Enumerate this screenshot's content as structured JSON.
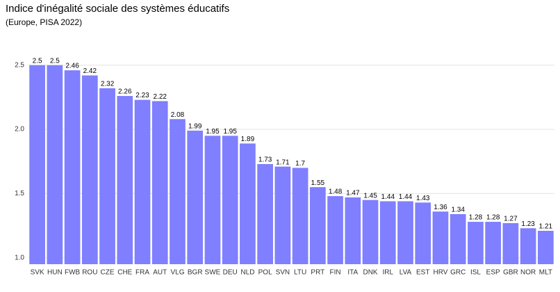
{
  "chart_data": {
    "type": "bar",
    "title": "Indice d'inégalité sociale des systèmes éducatifs",
    "subtitle": "(Europe, PISA 2022)",
    "categories": [
      "SVK",
      "HUN",
      "FWB",
      "ROU",
      "CZE",
      "CHE",
      "FRA",
      "AUT",
      "VLG",
      "BGR",
      "SWE",
      "DEU",
      "NLD",
      "POL",
      "SVN",
      "LTU",
      "PRT",
      "FIN",
      "ITA",
      "DNK",
      "IRL",
      "LVA",
      "EST",
      "HRV",
      "GRC",
      "ISL",
      "ESP",
      "GBR",
      "NOR",
      "MLT"
    ],
    "values": [
      2.5,
      2.5,
      2.46,
      2.42,
      2.32,
      2.26,
      2.23,
      2.22,
      2.08,
      1.99,
      1.95,
      1.95,
      1.89,
      1.73,
      1.71,
      1.7,
      1.55,
      1.48,
      1.47,
      1.45,
      1.44,
      1.44,
      1.43,
      1.36,
      1.34,
      1.28,
      1.28,
      1.27,
      1.23,
      1.21
    ],
    "color": "#7f7fff",
    "ylim": [
      0.95,
      2.78
    ],
    "yticks": [
      {
        "value": 1,
        "label": "1.0"
      },
      {
        "value": 1.5,
        "label": "1.5"
      },
      {
        "value": 2,
        "label": "2.0"
      },
      {
        "value": 2.5,
        "label": "2.5"
      }
    ],
    "grid": true
  }
}
